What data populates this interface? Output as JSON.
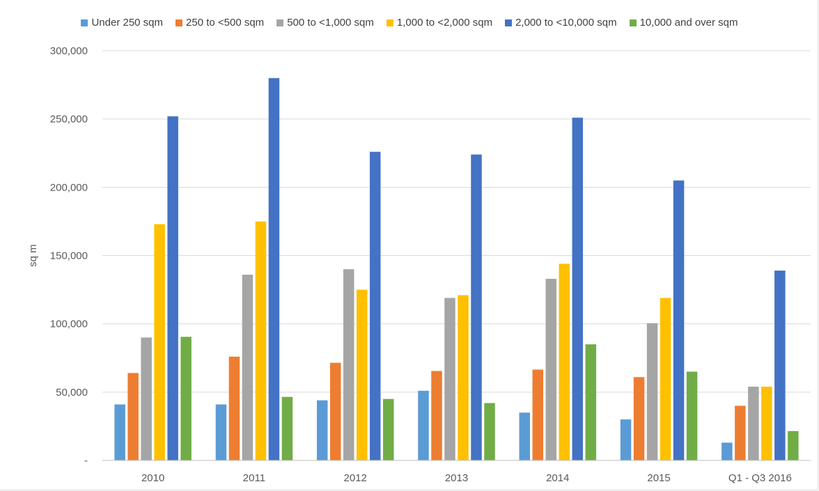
{
  "chart_data": {
    "type": "bar",
    "title": "",
    "xlabel": "",
    "ylabel": "sq m",
    "ylim": [
      0,
      300000
    ],
    "yticks": [
      0,
      50000,
      100000,
      150000,
      200000,
      250000,
      300000
    ],
    "ytick_labels": [
      "-",
      "50,000",
      "100,000",
      "150,000",
      "200,000",
      "250,000",
      "300,000"
    ],
    "grid": true,
    "legend_position": "top",
    "categories": [
      "2010",
      "2011",
      "2012",
      "2013",
      "2014",
      "2015",
      "Q1 - Q3 2016"
    ],
    "series": [
      {
        "name": "Under 250 sqm",
        "color": "#5B9BD5",
        "values": [
          41000,
          41000,
          44000,
          51000,
          35000,
          30000,
          13000
        ]
      },
      {
        "name": "250 to <500 sqm",
        "color": "#ED7D31",
        "values": [
          64000,
          76000,
          71500,
          65500,
          66500,
          61000,
          40000
        ]
      },
      {
        "name": "500 to <1,000 sqm",
        "color": "#A5A5A5",
        "values": [
          90000,
          136000,
          140000,
          119000,
          133000,
          100500,
          54000
        ]
      },
      {
        "name": "1,000 to <2,000 sqm",
        "color": "#FFC000",
        "values": [
          173000,
          175000,
          125000,
          121000,
          144000,
          119000,
          54000
        ]
      },
      {
        "name": "2,000 to <10,000 sqm",
        "color": "#4472C4",
        "values": [
          252000,
          280000,
          226000,
          224000,
          251000,
          205000,
          139000
        ]
      },
      {
        "name": "10,000 and over sqm",
        "color": "#70AD47",
        "values": [
          90500,
          46500,
          45000,
          42000,
          85000,
          65000,
          21500
        ]
      }
    ]
  }
}
